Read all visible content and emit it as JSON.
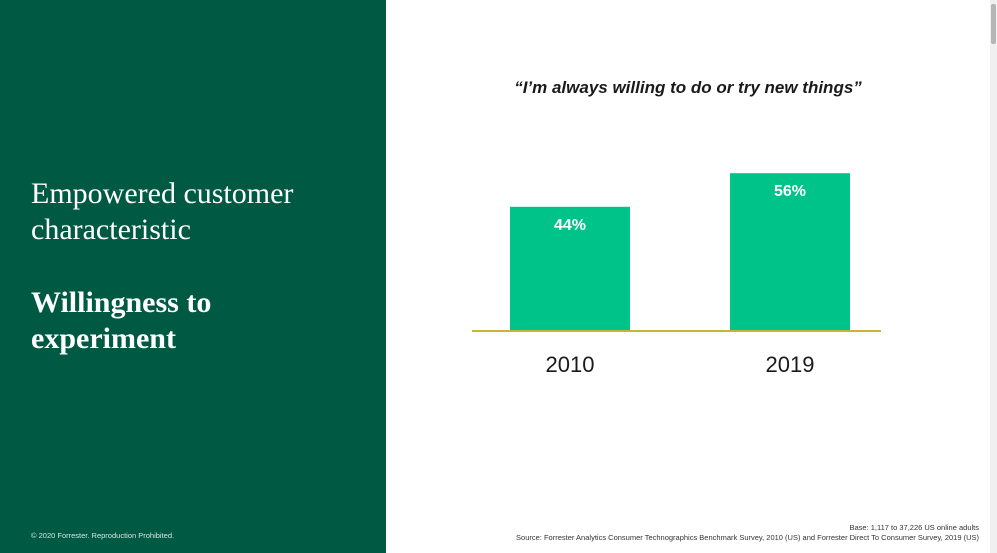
{
  "slide": {
    "subheading": "Empowered customer\ncharacteristic",
    "heading": "Willingness to\nexperiment",
    "copyright": "© 2020 Forrester. Reproduction Prohibited.",
    "base_note": "Base: 1,117 to 37,226 US online adults",
    "source_note": "Source: Forrester Analytics Consumer Technographics Benchmark Survey, 2010 (US) and Forrester Direct To Consumer Survey, 2019 (US)"
  },
  "colors": {
    "panel": "#005a43",
    "bar": "#00c389",
    "baseline": "#c8b43c"
  },
  "chart_data": {
    "type": "bar",
    "title": "“I’m always willing to do or try new things”",
    "categories": [
      "2010",
      "2019"
    ],
    "values": [
      44,
      56
    ],
    "value_labels": [
      "44%",
      "56%"
    ],
    "xlabel": "",
    "ylabel": "",
    "ylim": [
      0,
      60
    ],
    "grid": false,
    "legend": "none"
  }
}
